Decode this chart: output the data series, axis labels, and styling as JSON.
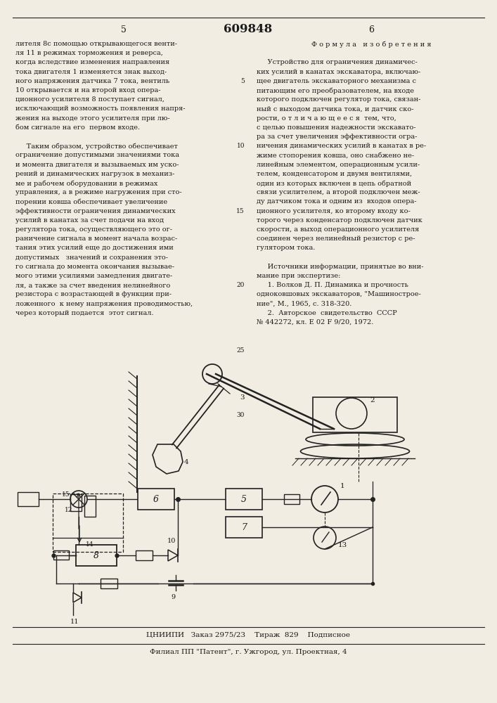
{
  "title": "609848",
  "page_left": "5",
  "page_right": "6",
  "bg_color": "#f2ede3",
  "text_color": "#1a1a1a",
  "left_column_text": [
    "лителя 8с помощью открывающегося венти-",
    "ля 11 в режимах торможения и реверса,",
    "когда вследствие изменения направления",
    "тока двигателя 1 изменяется знак выход-",
    "ного напряжения датчика 7 тока, вентиль",
    "10 открывается и на второй вход опера-",
    "ционного усилителя 8 поступает сигнал,",
    "исключающий возможность появления напря-",
    "жения на выходе этого усилителя при лю-",
    "бом сигнале на его  первом входе.",
    "",
    "     Таким образом, устройство обеспечивает",
    "ограничение допустимыми значениями тока",
    "и момента двигателя и вызываемых им уско-",
    "рений и динамических нагрузок в механиз-",
    "ме и рабочем оборудовании в режимах",
    "управления, а в режиме нагружения при сто-",
    "порении ковша обеспечивает увеличение",
    "эффективности ограничения динамических",
    "усилий в канатах за счет подачи на вход",
    "регулятора тока, осуществляющего это ог-",
    "раничение сигнала в момент начала возрас-",
    "тания этих усилий еще до достижения ими",
    "допустимых   значений и сохранения это-",
    "го сигнала до момента окончания вызывае-",
    "мого этими усилиями замедления двигате-",
    "ля, а также за счет введения нелинейного",
    "резистора с возрастающей в функции при-",
    "ложенного  к нему напряжения проводимостью,",
    "через который подается  этот сигнал."
  ],
  "right_column_text_line1": "Ф о р м у л а   и з о б р е т е н и я",
  "right_column_text": [
    "",
    "     Устройство для ограничения динамичес-",
    "ких усилий в канатах экскаватора, включаю-",
    "щее двигатель экскаваторного механизма с",
    "питающим его преобразователем, на входе",
    "которого подключен регулятор тока, связан-",
    "ный с выходом датчика тока, и датчик ско-",
    "рости, о т л и ч а ю щ е е с я  тем, что,",
    "с целью повышения надежности экскавато-",
    "ра за счет увеличения эффективности огра-",
    "ничения динамических усилий в канатах в ре-",
    "жиме стопорения ковша, оно снабжено не-",
    "линейным элементом, операционным усили-",
    "телем, конденсатором и двумя вентилями,",
    "один из которых включен в цепь обратной",
    "связи усилителем, а второй подключен меж-",
    "ду датчиком тока и одним из  входов опера-",
    "ционного усилителя, ко второму входу ко-",
    "торого через конденсатор подключен датчик",
    "скорости, а выход операционного усилителя",
    "соединен через нелинейный резистор с ре-",
    "гулятором тока.",
    "",
    "     Источники информации, принятые во вни-",
    "мание при экспертизе:",
    "     1. Волков Д. П. Динамика и прочность",
    "одноковшовых экскаваторов, \"Машинострое-",
    "ние\", М., 1965, с. 318-320.",
    "     2.  Авторское  свидетельство  СССР",
    "№ 442272, кл. Е 02 F 9/20, 1972."
  ],
  "footer_line1": "ЦНИИПИ   Заказ 2975/23    Тираж  829    Подписное",
  "footer_line2": "Филиал ПП \"Патент\", г. Ужгород, ул. Проектная, 4"
}
